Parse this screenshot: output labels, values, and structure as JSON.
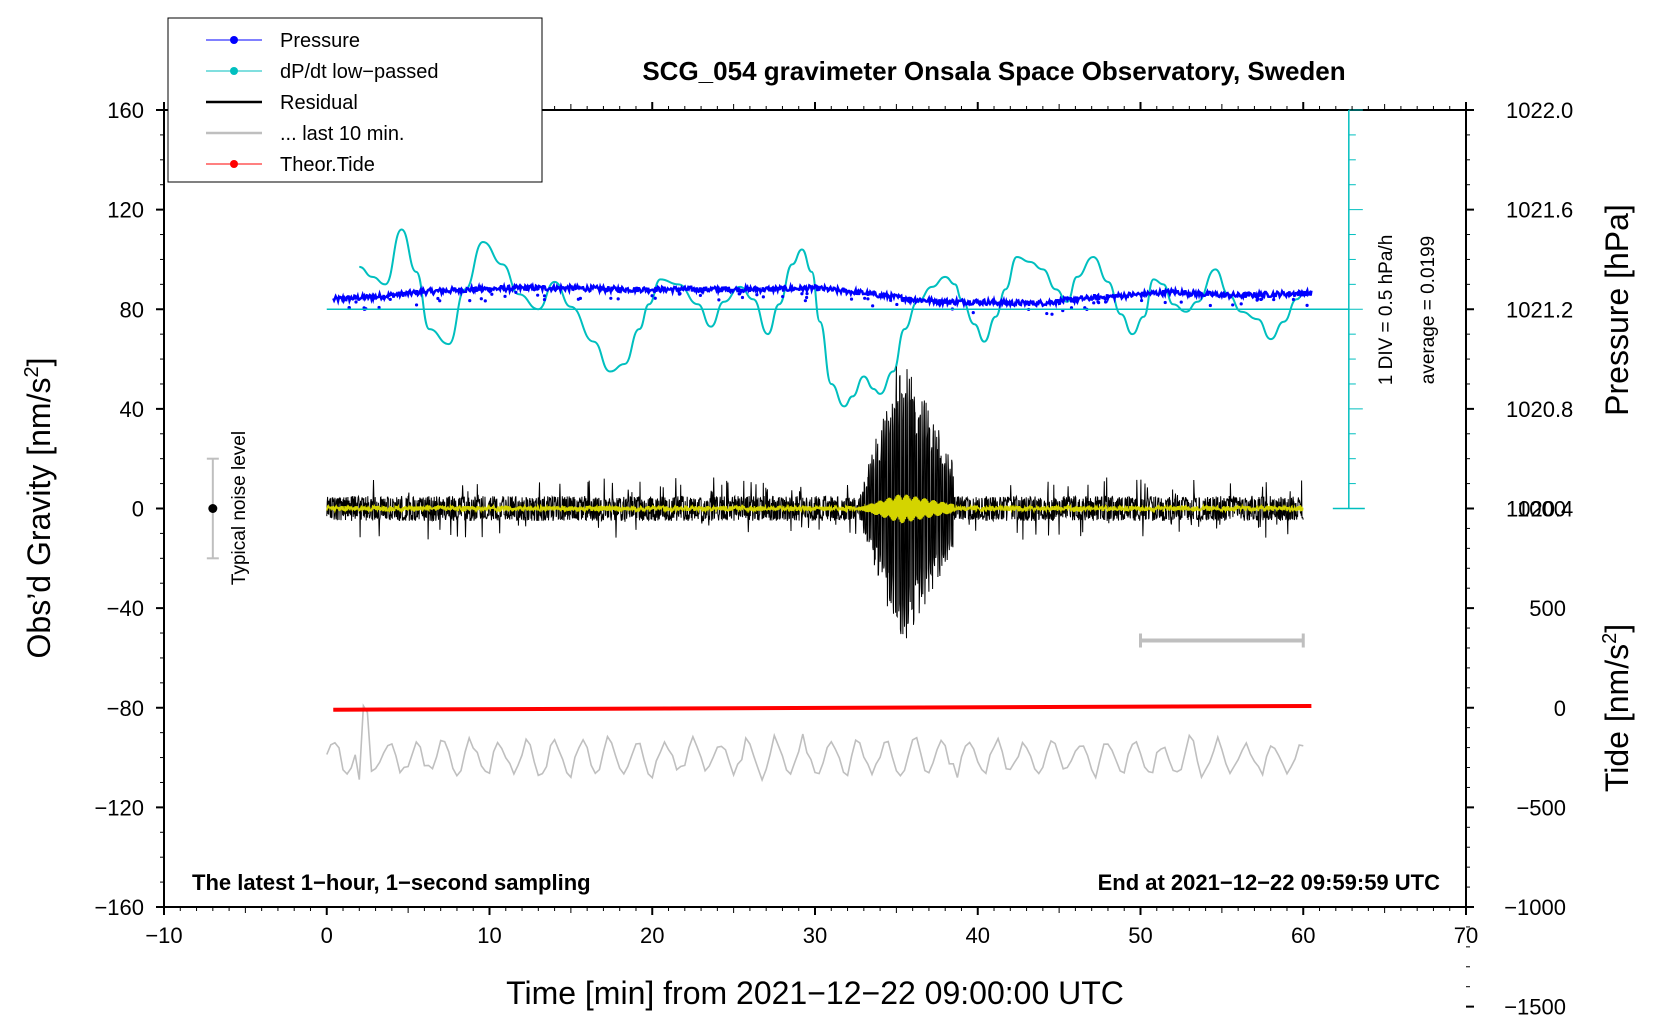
{
  "chart_data": {
    "type": "line",
    "title": "SCG_054 gravimeter Onsala Space Observatory, Sweden",
    "xlabel": "Time [min] from 2021−12−22 09:00:00 UTC",
    "ylabel_left_main": "Obs’d Gravity [nm/s",
    "ylabel_right_pressure": "Pressure [hPa]",
    "ylabel_right_tide_main": "Tide [nm/s",
    "sup2": "2",
    "sup_close": "]",
    "xlim": [
      -10,
      70
    ],
    "ylim": [
      -160,
      160
    ],
    "x_ticks": [
      "−10",
      "0",
      "10",
      "20",
      "30",
      "40",
      "50",
      "60",
      "70"
    ],
    "x_tick_values": [
      -10,
      0,
      10,
      20,
      30,
      40,
      50,
      60,
      70
    ],
    "y_ticks": [
      "160",
      "120",
      "80",
      "40",
      "0",
      "−40",
      "−80",
      "−120",
      "−160"
    ],
    "y_tick_values": [
      160,
      120,
      80,
      40,
      0,
      -40,
      -80,
      -120,
      -160
    ],
    "pressure_axis": {
      "ticks": [
        "1022.0",
        "1021.6",
        "1021.2",
        "1020.8",
        "1020.4"
      ],
      "tick_values": [
        1022.0,
        1021.6,
        1021.2,
        1020.8,
        1020.4
      ],
      "ref_gravity": 80,
      "ref_value": 1021.2,
      "gravity_per_hPa": 100
    },
    "tide_axis": {
      "ticks": [
        "1000",
        "500",
        "0",
        "−500",
        "−1000",
        "−1500"
      ],
      "tick_values": [
        1000,
        500,
        0,
        -500,
        -1000,
        -1500
      ],
      "ref_gravity": -80,
      "gravity_per_unit": 0.08
    },
    "legend": [
      {
        "label": "Pressure",
        "color": "#0000ff",
        "marker": true
      },
      {
        "label": "dP/dt low−passed",
        "color": "#00bfbf",
        "marker": true
      },
      {
        "label": "Residual",
        "color": "#000000",
        "marker": false
      },
      {
        "label": "... last 10 min.",
        "color": "#bfbfbf",
        "marker": false
      },
      {
        "label": "Theor.Tide",
        "color": "#ff0000",
        "marker": true
      }
    ],
    "annotations": {
      "bottom_left": "The latest 1−hour, 1−second sampling",
      "bottom_right": "End at 2021−12−22 09:59:59 UTC",
      "noise_label": "Typical noise level",
      "div_label": "1 DIV = 0.5 hPa/h",
      "avg_label": "average = 0.0199"
    },
    "noise_bar": {
      "x": -7,
      "y_low": -20,
      "y_high": 20,
      "center": 0
    },
    "last10_bar": {
      "x_start": 50,
      "x_end": 60,
      "y": -53
    },
    "dpdt": {
      "x": [
        2,
        2.8,
        3.6,
        4.6,
        5.5,
        6.3,
        7.5,
        8.5,
        9.6,
        10.8,
        11.8,
        13,
        14,
        15,
        16.4,
        17.4,
        18.3,
        19.2,
        19.8,
        20.5,
        21.6,
        22.8,
        23.6,
        24.4,
        25.4,
        26.2,
        27.1,
        27.8,
        28.6,
        29.2,
        29.8,
        30.3,
        31,
        31.8,
        32.3,
        33,
        33.6,
        34,
        34.8,
        35.5,
        36.3,
        37.2,
        38,
        38.6,
        39,
        39.8,
        40.4,
        41.1,
        41.7,
        42.4,
        43.2,
        44,
        44.8,
        45.5,
        46.1,
        47.1,
        48,
        48.8,
        49.5,
        50.2,
        50.8,
        51.4,
        52,
        52.8,
        53.5,
        54.6,
        55.4,
        56.2,
        57.2,
        58,
        58.8,
        59.6,
        60
      ],
      "y": [
        97,
        93,
        90,
        112,
        95,
        72,
        66,
        88,
        107,
        98,
        86,
        80,
        91,
        81,
        67,
        55,
        58,
        72,
        82,
        92,
        90,
        82,
        73,
        83,
        89,
        84,
        70,
        82,
        98,
        104,
        95,
        75,
        50,
        41,
        45,
        53,
        48,
        46,
        55,
        72,
        83,
        89,
        93,
        90,
        84,
        74,
        67,
        77,
        88,
        101,
        99,
        96,
        88,
        83,
        93,
        101,
        91,
        78,
        70,
        77,
        92,
        90,
        82,
        79,
        83,
        96,
        86,
        79,
        76,
        68,
        75,
        84,
        86
      ]
    },
    "pressure": {
      "x_start": 0.4,
      "x_end": 60.5,
      "baseline": [
        [
          0.4,
          84
        ],
        [
          3,
          85
        ],
        [
          6,
          87
        ],
        [
          9,
          88
        ],
        [
          12,
          88.5
        ],
        [
          15,
          88.5
        ],
        [
          18,
          88
        ],
        [
          21,
          88
        ],
        [
          24,
          88
        ],
        [
          27,
          88
        ],
        [
          30,
          88.5
        ],
        [
          33,
          86.5
        ],
        [
          36,
          84
        ],
        [
          38,
          83
        ],
        [
          40,
          83
        ],
        [
          42,
          82.5
        ],
        [
          44,
          82.5
        ],
        [
          46,
          84
        ],
        [
          48,
          85
        ],
        [
          50,
          86
        ],
        [
          52,
          87
        ],
        [
          54,
          86
        ],
        [
          56,
          85.5
        ],
        [
          58,
          86
        ],
        [
          60.5,
          86.5
        ]
      ]
    },
    "residual": {
      "x_start": 0,
      "x_end": 60,
      "quake_start": 32.5,
      "quake_peak": 35.3,
      "quake_end": 38.5,
      "quake_max": 64,
      "quake_min": -57,
      "base_noise": 5
    },
    "last10": {
      "x_start": 0,
      "x_end": 60,
      "center": -100,
      "amplitude": 8
    },
    "tide": {
      "x": [
        0.4,
        60.5
      ],
      "y": [
        -80.8,
        -79.3
      ]
    }
  }
}
